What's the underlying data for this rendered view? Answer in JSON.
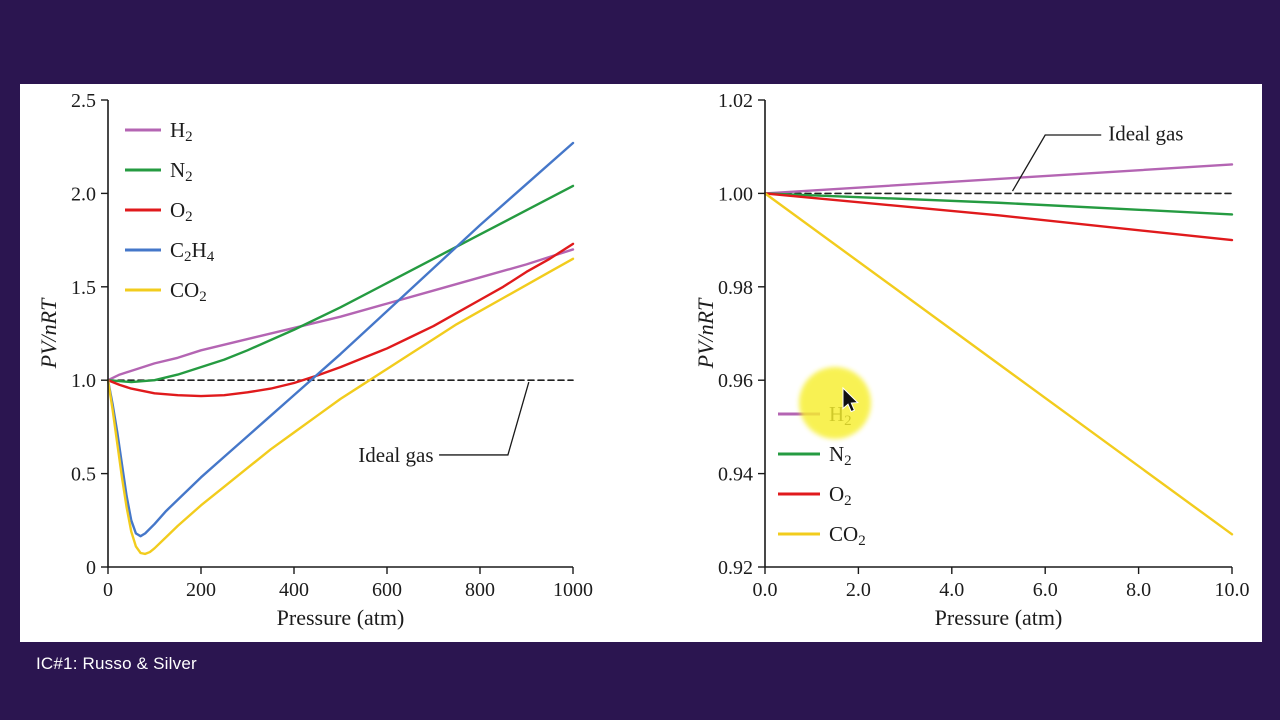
{
  "frame": {
    "background": "#2b1550",
    "panel_background": "#ffffff"
  },
  "footer": {
    "caption": "IC#1: Russo & Silver"
  },
  "colors": {
    "axis": "#1a1a1a",
    "ideal_dash": "#222222",
    "highlight": "#f7ef2e",
    "cursor": "#111111"
  },
  "chart_data": [
    {
      "type": "line",
      "title": "",
      "xlabel": "Pressure (atm)",
      "ylabel": "PV/nRT",
      "xlim": [
        0,
        1000
      ],
      "ylim": [
        0,
        2.5
      ],
      "grid": false,
      "legend_position": "top-left",
      "xticks": [
        [
          0,
          "0"
        ],
        [
          200,
          "200"
        ],
        [
          400,
          "400"
        ],
        [
          600,
          "600"
        ],
        [
          800,
          "800"
        ],
        [
          1000,
          "1000"
        ]
      ],
      "yticks": [
        [
          0,
          "0"
        ],
        [
          0.5,
          "0.5"
        ],
        [
          1,
          "1.0"
        ],
        [
          1.5,
          "1.5"
        ],
        [
          2,
          "2.0"
        ],
        [
          2.5,
          "2.5"
        ]
      ],
      "series": [
        {
          "name": "Ideal gas",
          "color": "#222222",
          "dashed": true,
          "in_legend": false,
          "points": [
            [
              0,
              1.0
            ],
            [
              1000,
              1.0
            ]
          ]
        },
        {
          "name": "H_2",
          "color": "#b465b3",
          "points": [
            [
              0,
              1.0
            ],
            [
              25,
              1.03
            ],
            [
              50,
              1.05
            ],
            [
              100,
              1.09
            ],
            [
              150,
              1.12
            ],
            [
              200,
              1.16
            ],
            [
              300,
              1.22
            ],
            [
              400,
              1.28
            ],
            [
              500,
              1.34
            ],
            [
              600,
              1.41
            ],
            [
              700,
              1.48
            ],
            [
              800,
              1.55
            ],
            [
              900,
              1.62
            ],
            [
              1000,
              1.7
            ]
          ]
        },
        {
          "name": "N_2",
          "color": "#259b41",
          "points": [
            [
              0,
              1.0
            ],
            [
              50,
              0.99
            ],
            [
              100,
              1.0
            ],
            [
              150,
              1.03
            ],
            [
              200,
              1.07
            ],
            [
              250,
              1.11
            ],
            [
              300,
              1.16
            ],
            [
              400,
              1.27
            ],
            [
              500,
              1.39
            ],
            [
              600,
              1.52
            ],
            [
              700,
              1.65
            ],
            [
              800,
              1.78
            ],
            [
              900,
              1.91
            ],
            [
              1000,
              2.04
            ]
          ]
        },
        {
          "name": "O_2",
          "color": "#e01a1c",
          "points": [
            [
              0,
              1.0
            ],
            [
              25,
              0.975
            ],
            [
              50,
              0.955
            ],
            [
              100,
              0.93
            ],
            [
              150,
              0.92
            ],
            [
              200,
              0.915
            ],
            [
              250,
              0.92
            ],
            [
              300,
              0.935
            ],
            [
              350,
              0.955
            ],
            [
              400,
              0.985
            ],
            [
              450,
              1.025
            ],
            [
              500,
              1.07
            ],
            [
              550,
              1.12
            ],
            [
              600,
              1.17
            ],
            [
              650,
              1.23
            ],
            [
              700,
              1.29
            ],
            [
              750,
              1.36
            ],
            [
              800,
              1.43
            ],
            [
              850,
              1.5
            ],
            [
              900,
              1.58
            ],
            [
              950,
              1.65
            ],
            [
              1000,
              1.73
            ]
          ]
        },
        {
          "name": "C_2H_4",
          "color": "#4577c9",
          "points": [
            [
              0,
              1.0
            ],
            [
              10,
              0.87
            ],
            [
              20,
              0.72
            ],
            [
              30,
              0.55
            ],
            [
              40,
              0.38
            ],
            [
              50,
              0.25
            ],
            [
              60,
              0.18
            ],
            [
              70,
              0.165
            ],
            [
              80,
              0.18
            ],
            [
              100,
              0.23
            ],
            [
              125,
              0.3
            ],
            [
              150,
              0.36
            ],
            [
              200,
              0.48
            ],
            [
              250,
              0.59
            ],
            [
              300,
              0.7
            ],
            [
              350,
              0.81
            ],
            [
              400,
              0.92
            ],
            [
              500,
              1.14
            ],
            [
              600,
              1.37
            ],
            [
              700,
              1.6
            ],
            [
              800,
              1.83
            ],
            [
              900,
              2.05
            ],
            [
              1000,
              2.27
            ]
          ]
        },
        {
          "name": "CO_2",
          "color": "#f2cc1d",
          "points": [
            [
              0,
              1.0
            ],
            [
              10,
              0.84
            ],
            [
              20,
              0.66
            ],
            [
              30,
              0.48
            ],
            [
              40,
              0.32
            ],
            [
              50,
              0.19
            ],
            [
              60,
              0.11
            ],
            [
              70,
              0.075
            ],
            [
              80,
              0.07
            ],
            [
              90,
              0.08
            ],
            [
              100,
              0.1
            ],
            [
              125,
              0.16
            ],
            [
              150,
              0.22
            ],
            [
              200,
              0.33
            ],
            [
              250,
              0.43
            ],
            [
              300,
              0.53
            ],
            [
              350,
              0.63
            ],
            [
              400,
              0.72
            ],
            [
              450,
              0.81
            ],
            [
              500,
              0.9
            ],
            [
              550,
              0.98
            ],
            [
              600,
              1.06
            ],
            [
              650,
              1.14
            ],
            [
              700,
              1.22
            ],
            [
              750,
              1.3
            ],
            [
              800,
              1.37
            ],
            [
              850,
              1.44
            ],
            [
              900,
              1.51
            ],
            [
              950,
              1.58
            ],
            [
              1000,
              1.65
            ]
          ]
        }
      ],
      "annotation": {
        "label": "Ideal gas",
        "anchor": "end",
        "label_xy": [
          700,
          0.6
        ],
        "line": [
          [
            712,
            0.6
          ],
          [
            860,
            0.6
          ],
          [
            905,
            0.99
          ]
        ]
      }
    },
    {
      "type": "line",
      "title": "",
      "xlabel": "Pressure (atm)",
      "ylabel": "PV/nRT",
      "xlim": [
        0,
        10
      ],
      "ylim": [
        0.92,
        1.02
      ],
      "grid": false,
      "legend_position": "bottom-left",
      "xticks": [
        [
          0,
          "0.0"
        ],
        [
          2,
          "2.0"
        ],
        [
          4,
          "4.0"
        ],
        [
          6,
          "6.0"
        ],
        [
          8,
          "8.0"
        ],
        [
          10,
          "10.0"
        ]
      ],
      "yticks": [
        [
          0.92,
          "0.92"
        ],
        [
          0.94,
          "0.94"
        ],
        [
          0.96,
          "0.96"
        ],
        [
          0.98,
          "0.98"
        ],
        [
          1.0,
          "1.00"
        ],
        [
          1.02,
          "1.02"
        ]
      ],
      "series": [
        {
          "name": "Ideal gas",
          "color": "#222222",
          "dashed": true,
          "in_legend": false,
          "points": [
            [
              0,
              1.0
            ],
            [
              10,
              1.0
            ]
          ]
        },
        {
          "name": "H_2",
          "color": "#b465b3",
          "points": [
            [
              0,
              1.0
            ],
            [
              5,
              1.0031
            ],
            [
              10,
              1.0062
            ]
          ]
        },
        {
          "name": "N_2",
          "color": "#259b41",
          "points": [
            [
              0,
              1.0
            ],
            [
              5,
              0.998
            ],
            [
              10,
              0.9955
            ]
          ]
        },
        {
          "name": "O_2",
          "color": "#e01a1c",
          "points": [
            [
              0,
              1.0
            ],
            [
              5,
              0.9953
            ],
            [
              10,
              0.99
            ]
          ]
        },
        {
          "name": "CO_2",
          "color": "#f2cc1d",
          "points": [
            [
              0,
              1.0
            ],
            [
              5,
              0.9635
            ],
            [
              10,
              0.927
            ]
          ]
        }
      ],
      "annotation": {
        "label": "Ideal gas",
        "anchor": "start",
        "label_xy": [
          7.35,
          1.0128
        ],
        "line": [
          [
            7.2,
            1.0125
          ],
          [
            6.0,
            1.0125
          ],
          [
            5.3,
            1.0005
          ]
        ]
      }
    }
  ]
}
